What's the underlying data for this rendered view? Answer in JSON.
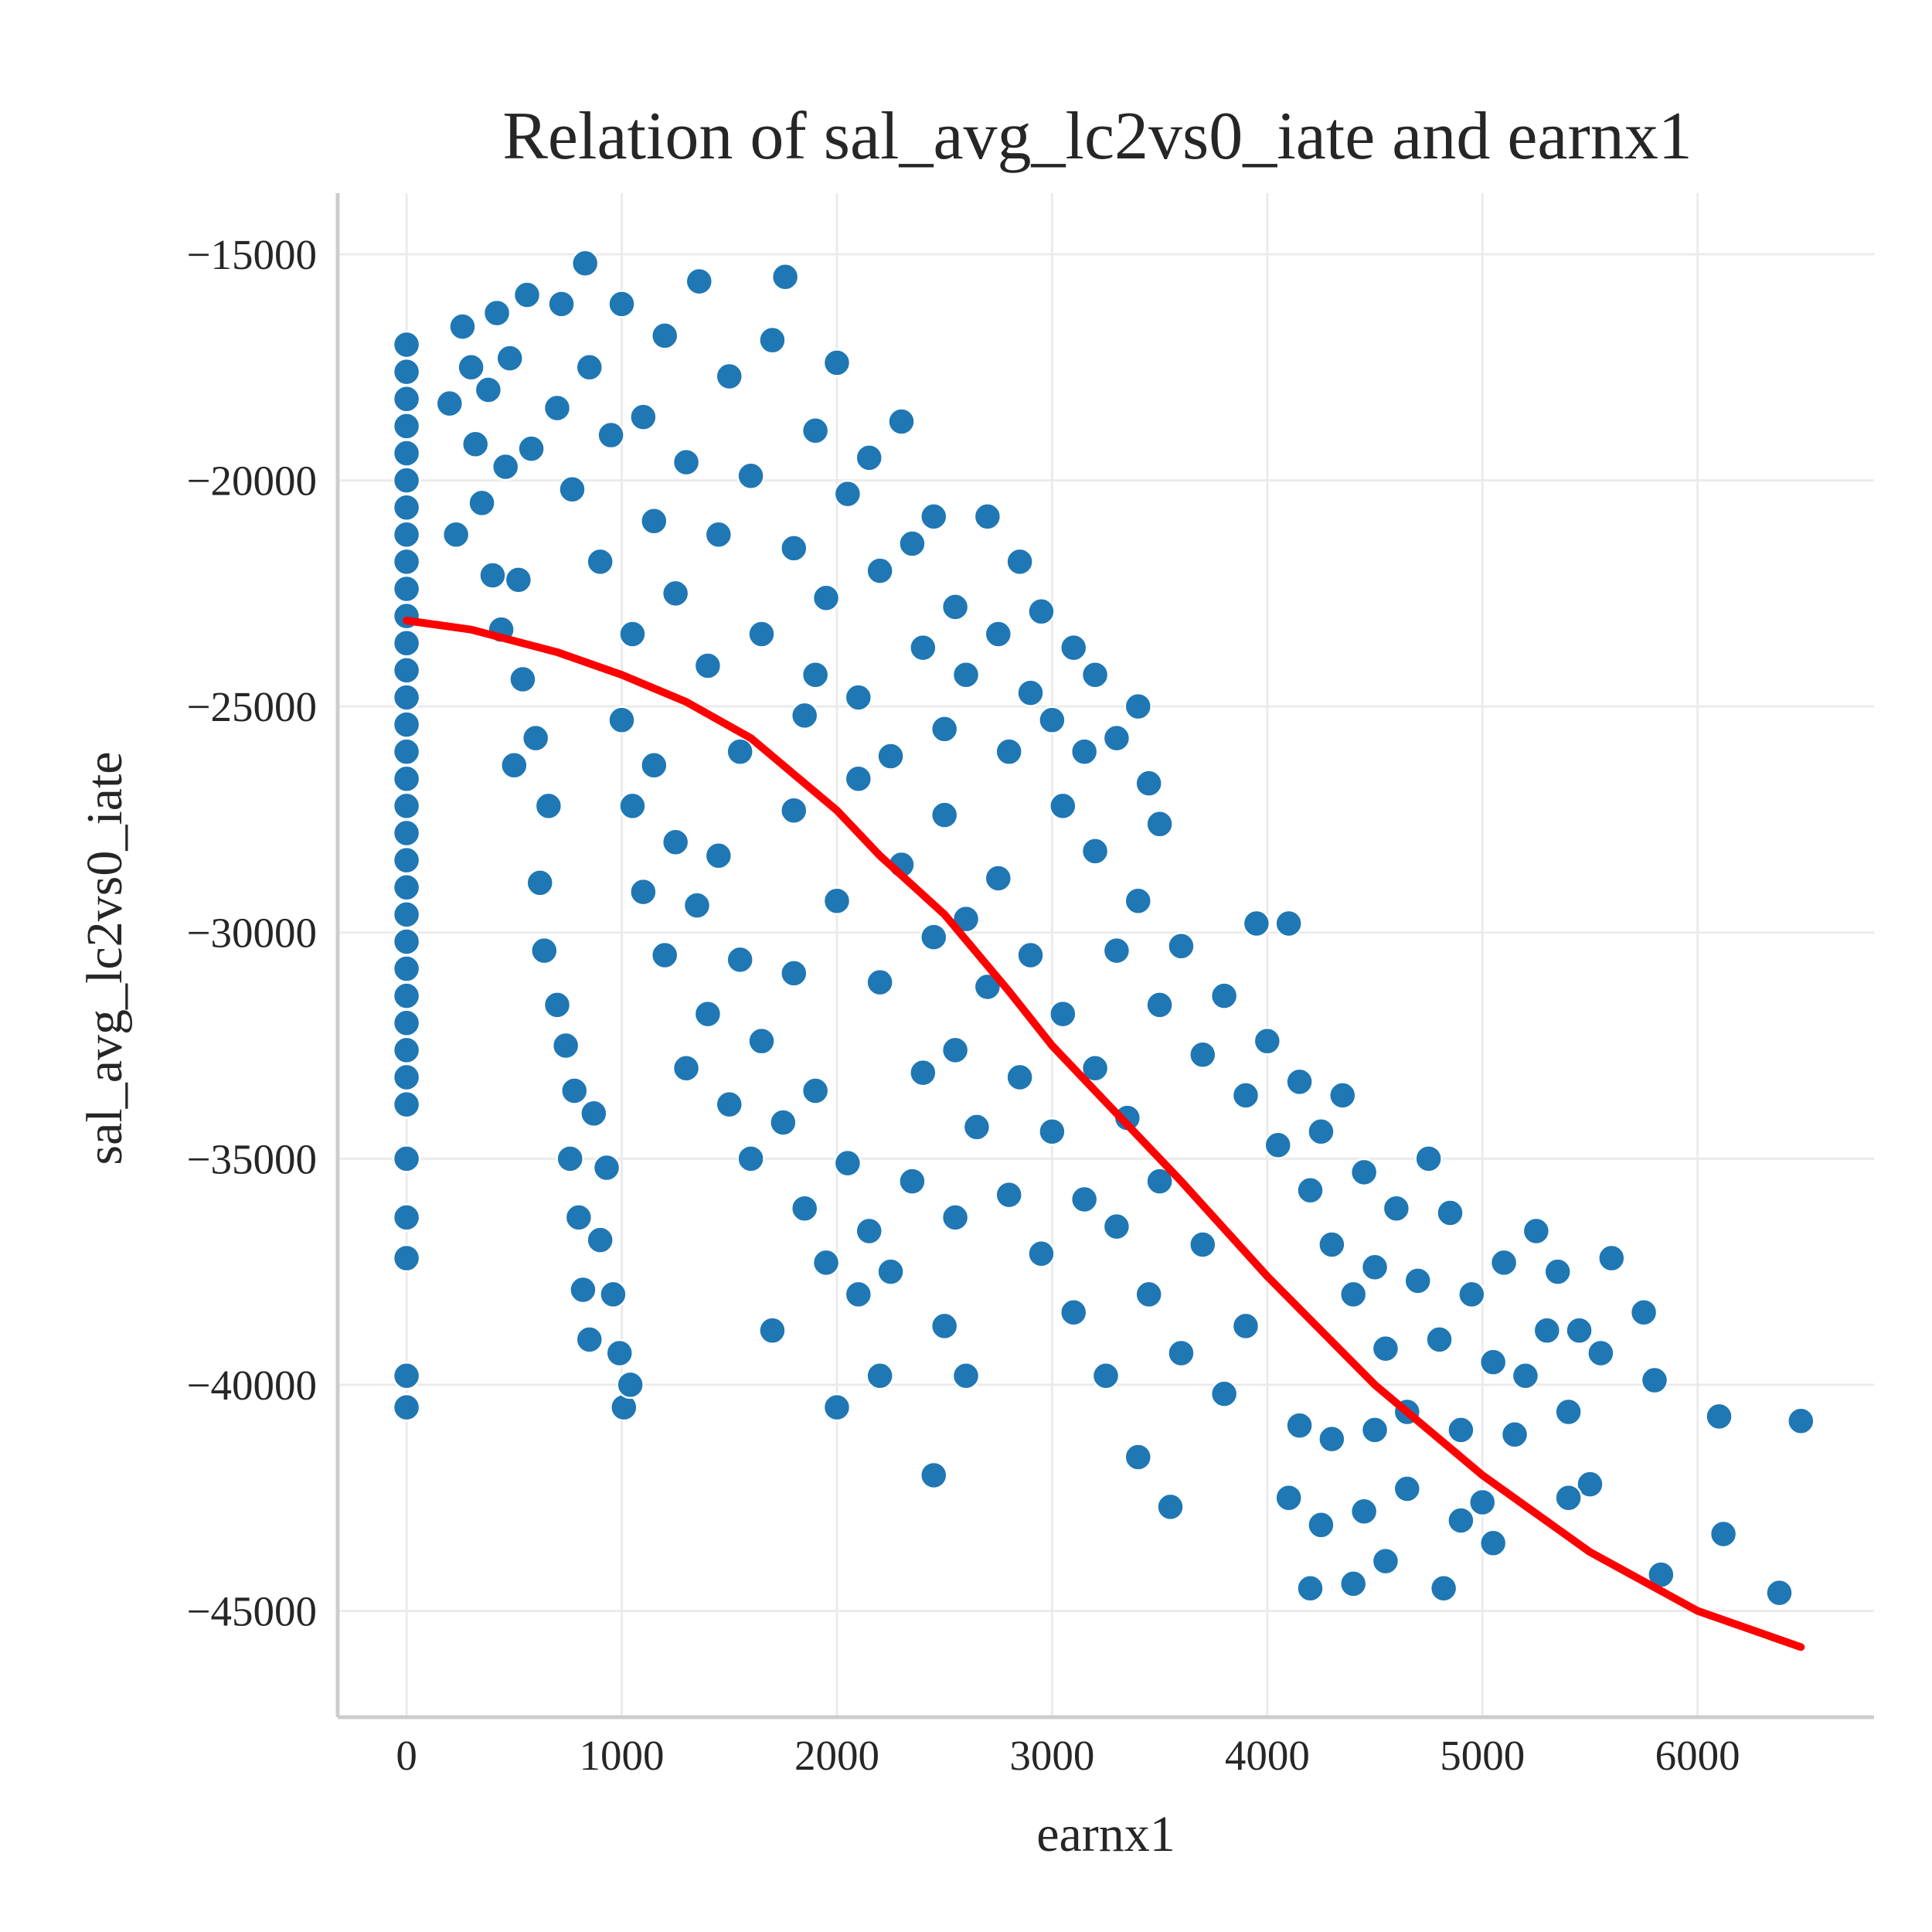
{
  "chart_data": {
    "type": "scatter",
    "title": "Relation of sal_avg_lc2vs0_iate and earnx1",
    "xlabel": "earnx1",
    "ylabel": "sal_avg_lc2vs0_iate",
    "xlim": [
      -320,
      6820
    ],
    "ylim": [
      -47350,
      -13650
    ],
    "xticks": [
      0,
      1000,
      2000,
      3000,
      4000,
      5000,
      6000
    ],
    "xtick_labels": [
      "0",
      "1000",
      "2000",
      "3000",
      "4000",
      "5000",
      "6000"
    ],
    "yticks": [
      -15000,
      -20000,
      -25000,
      -30000,
      -35000,
      -40000,
      -45000
    ],
    "ytick_labels": [
      "−15000",
      "−20000",
      "−25000",
      "−30000",
      "−35000",
      "−40000",
      "−45000"
    ],
    "grid": true,
    "colors": {
      "points": "#1f77b4",
      "trend": "#ff0000"
    },
    "series": [
      {
        "type": "scatter",
        "x_y_points": [
          [
            0,
            -17000
          ],
          [
            0,
            -17600
          ],
          [
            0,
            -18200
          ],
          [
            0,
            -18800
          ],
          [
            0,
            -19400
          ],
          [
            0,
            -20000
          ],
          [
            0,
            -20600
          ],
          [
            0,
            -21200
          ],
          [
            0,
            -21800
          ],
          [
            0,
            -22400
          ],
          [
            0,
            -23000
          ],
          [
            0,
            -23600
          ],
          [
            0,
            -24200
          ],
          [
            0,
            -24800
          ],
          [
            0,
            -25400
          ],
          [
            0,
            -26000
          ],
          [
            0,
            -26600
          ],
          [
            0,
            -27200
          ],
          [
            0,
            -27800
          ],
          [
            0,
            -28400
          ],
          [
            0,
            -29000
          ],
          [
            0,
            -29600
          ],
          [
            0,
            -30200
          ],
          [
            0,
            -30800
          ],
          [
            0,
            -31400
          ],
          [
            0,
            -32000
          ],
          [
            0,
            -32600
          ],
          [
            0,
            -33200
          ],
          [
            0,
            -33800
          ],
          [
            0,
            -35000
          ],
          [
            0,
            -36300
          ],
          [
            0,
            -37200
          ],
          [
            0,
            -39800
          ],
          [
            0,
            -40500
          ],
          [
            200,
            -18300
          ],
          [
            230,
            -21200
          ],
          [
            260,
            -16600
          ],
          [
            300,
            -17500
          ],
          [
            320,
            -19200
          ],
          [
            350,
            -20500
          ],
          [
            380,
            -18000
          ],
          [
            400,
            -22100
          ],
          [
            420,
            -16300
          ],
          [
            440,
            -23300
          ],
          [
            460,
            -19700
          ],
          [
            480,
            -17300
          ],
          [
            500,
            -26300
          ],
          [
            520,
            -22200
          ],
          [
            540,
            -24400
          ],
          [
            560,
            -15900
          ],
          [
            580,
            -19300
          ],
          [
            600,
            -25700
          ],
          [
            620,
            -28900
          ],
          [
            640,
            -30400
          ],
          [
            660,
            -27200
          ],
          [
            700,
            -31600
          ],
          [
            720,
            -16100
          ],
          [
            740,
            -32500
          ],
          [
            760,
            -35000
          ],
          [
            780,
            -33500
          ],
          [
            800,
            -36300
          ],
          [
            820,
            -37900
          ],
          [
            850,
            -39000
          ],
          [
            870,
            -34000
          ],
          [
            900,
            -36800
          ],
          [
            930,
            -35200
          ],
          [
            960,
            -38000
          ],
          [
            990,
            -39300
          ],
          [
            1010,
            -40500
          ],
          [
            1040,
            -40000
          ],
          [
            830,
            -15200
          ],
          [
            700,
            -18400
          ],
          [
            770,
            -20200
          ],
          [
            850,
            -17500
          ],
          [
            900,
            -21800
          ],
          [
            950,
            -19000
          ],
          [
            1000,
            -16100
          ],
          [
            1050,
            -23400
          ],
          [
            1100,
            -18600
          ],
          [
            1150,
            -20900
          ],
          [
            1200,
            -16800
          ],
          [
            1250,
            -22500
          ],
          [
            1300,
            -19600
          ],
          [
            1360,
            -15600
          ],
          [
            1400,
            -24100
          ],
          [
            1450,
            -21200
          ],
          [
            1500,
            -17700
          ],
          [
            1550,
            -26000
          ],
          [
            1600,
            -19900
          ],
          [
            1650,
            -23400
          ],
          [
            1700,
            -16900
          ],
          [
            1760,
            -15500
          ],
          [
            1800,
            -21500
          ],
          [
            1850,
            -25200
          ],
          [
            1900,
            -18900
          ],
          [
            1950,
            -22600
          ],
          [
            2000,
            -17400
          ],
          [
            2050,
            -20300
          ],
          [
            2100,
            -24800
          ],
          [
            2150,
            -19500
          ],
          [
            2200,
            -22000
          ],
          [
            2250,
            -26100
          ],
          [
            2300,
            -18700
          ],
          [
            2350,
            -21400
          ],
          [
            2400,
            -23700
          ],
          [
            2450,
            -20800
          ],
          [
            2500,
            -25500
          ],
          [
            2550,
            -22800
          ],
          [
            2600,
            -24300
          ],
          [
            2700,
            -20800
          ],
          [
            2750,
            -23400
          ],
          [
            2800,
            -26000
          ],
          [
            2850,
            -21800
          ],
          [
            2900,
            -24700
          ],
          [
            2950,
            -22900
          ],
          [
            3000,
            -25300
          ],
          [
            3050,
            -27200
          ],
          [
            3100,
            -23700
          ],
          [
            3150,
            -26000
          ],
          [
            3200,
            -24300
          ],
          [
            3300,
            -25700
          ],
          [
            3400,
            -25000
          ],
          [
            3450,
            -26700
          ],
          [
            3500,
            -27600
          ],
          [
            1000,
            -25300
          ],
          [
            1050,
            -27200
          ],
          [
            1100,
            -29100
          ],
          [
            1150,
            -26300
          ],
          [
            1200,
            -30500
          ],
          [
            1250,
            -28000
          ],
          [
            1300,
            -33000
          ],
          [
            1350,
            -29400
          ],
          [
            1400,
            -31800
          ],
          [
            1450,
            -28300
          ],
          [
            1500,
            -33800
          ],
          [
            1550,
            -30600
          ],
          [
            1600,
            -35000
          ],
          [
            1650,
            -32400
          ],
          [
            1700,
            -38800
          ],
          [
            1750,
            -34200
          ],
          [
            1800,
            -30900
          ],
          [
            1850,
            -36100
          ],
          [
            1900,
            -33500
          ],
          [
            1950,
            -37300
          ],
          [
            2000,
            -40500
          ],
          [
            2050,
            -35100
          ],
          [
            2100,
            -38000
          ],
          [
            2150,
            -36600
          ],
          [
            2200,
            -39800
          ],
          [
            2250,
            -37500
          ],
          [
            2350,
            -35500
          ],
          [
            2450,
            -42000
          ],
          [
            2500,
            -38700
          ],
          [
            2550,
            -36300
          ],
          [
            2600,
            -39800
          ],
          [
            1800,
            -27300
          ],
          [
            1900,
            -24300
          ],
          [
            2000,
            -29300
          ],
          [
            2100,
            -26600
          ],
          [
            2200,
            -31100
          ],
          [
            2300,
            -28500
          ],
          [
            2400,
            -33100
          ],
          [
            2450,
            -30100
          ],
          [
            2500,
            -27400
          ],
          [
            2550,
            -32600
          ],
          [
            2600,
            -29700
          ],
          [
            2650,
            -34300
          ],
          [
            2700,
            -31200
          ],
          [
            2750,
            -28800
          ],
          [
            2800,
            -35800
          ],
          [
            2850,
            -33200
          ],
          [
            2900,
            -30500
          ],
          [
            2950,
            -37100
          ],
          [
            3000,
            -34400
          ],
          [
            3050,
            -31800
          ],
          [
            3100,
            -38400
          ],
          [
            3150,
            -35900
          ],
          [
            3200,
            -33000
          ],
          [
            3250,
            -39800
          ],
          [
            3300,
            -36500
          ],
          [
            3350,
            -34100
          ],
          [
            3400,
            -41600
          ],
          [
            3450,
            -38000
          ],
          [
            3500,
            -35500
          ],
          [
            3550,
            -42700
          ],
          [
            3600,
            -39300
          ],
          [
            3700,
            -36900
          ],
          [
            3800,
            -40200
          ],
          [
            3900,
            -38700
          ],
          [
            3200,
            -28200
          ],
          [
            3300,
            -30400
          ],
          [
            3400,
            -29300
          ],
          [
            3500,
            -31600
          ],
          [
            3600,
            -30300
          ],
          [
            3700,
            -32700
          ],
          [
            3800,
            -31400
          ],
          [
            3900,
            -33600
          ],
          [
            3950,
            -29800
          ],
          [
            4000,
            -32400
          ],
          [
            4050,
            -34700
          ],
          [
            4100,
            -29800
          ],
          [
            4150,
            -33300
          ],
          [
            4200,
            -35700
          ],
          [
            4250,
            -34400
          ],
          [
            4300,
            -36900
          ],
          [
            4350,
            -33600
          ],
          [
            4400,
            -38000
          ],
          [
            4450,
            -35300
          ],
          [
            4500,
            -37400
          ],
          [
            4550,
            -39200
          ],
          [
            4600,
            -36100
          ],
          [
            4650,
            -40600
          ],
          [
            4700,
            -37700
          ],
          [
            4750,
            -35000
          ],
          [
            4800,
            -39000
          ],
          [
            4850,
            -36200
          ],
          [
            4900,
            -41000
          ],
          [
            4950,
            -38000
          ],
          [
            5000,
            -42600
          ],
          [
            5050,
            -39500
          ],
          [
            5100,
            -37300
          ],
          [
            5150,
            -41100
          ],
          [
            5200,
            -39800
          ],
          [
            5250,
            -36600
          ],
          [
            5300,
            -38800
          ],
          [
            5350,
            -37500
          ],
          [
            5400,
            -40600
          ],
          [
            5450,
            -38800
          ],
          [
            5500,
            -42200
          ],
          [
            5550,
            -39300
          ],
          [
            5600,
            -37200
          ],
          [
            4100,
            -42500
          ],
          [
            4150,
            -40900
          ],
          [
            4200,
            -44500
          ],
          [
            4250,
            -43100
          ],
          [
            4300,
            -41200
          ],
          [
            4400,
            -44400
          ],
          [
            4450,
            -42800
          ],
          [
            4500,
            -41000
          ],
          [
            4550,
            -43900
          ],
          [
            4650,
            -42300
          ],
          [
            4820,
            -44500
          ],
          [
            4900,
            -43000
          ],
          [
            5050,
            -43500
          ],
          [
            5400,
            -42500
          ],
          [
            5750,
            -38400
          ],
          [
            5800,
            -39900
          ],
          [
            5830,
            -44200
          ],
          [
            6100,
            -40700
          ],
          [
            6120,
            -43300
          ],
          [
            6380,
            -44600
          ],
          [
            6480,
            -40800
          ]
        ]
      },
      {
        "type": "line",
        "x_y_points": [
          [
            0,
            -23100
          ],
          [
            300,
            -23300
          ],
          [
            700,
            -23800
          ],
          [
            1000,
            -24300
          ],
          [
            1300,
            -24900
          ],
          [
            1600,
            -25700
          ],
          [
            1800,
            -26500
          ],
          [
            2000,
            -27300
          ],
          [
            2200,
            -28300
          ],
          [
            2500,
            -29600
          ],
          [
            2800,
            -31300
          ],
          [
            3000,
            -32500
          ],
          [
            3300,
            -34000
          ],
          [
            3600,
            -35500
          ],
          [
            4000,
            -37600
          ],
          [
            4500,
            -40000
          ],
          [
            5000,
            -42000
          ],
          [
            5500,
            -43700
          ],
          [
            6000,
            -45000
          ],
          [
            6480,
            -45800
          ]
        ]
      }
    ]
  }
}
